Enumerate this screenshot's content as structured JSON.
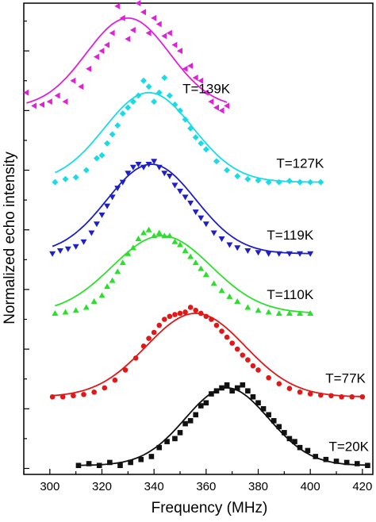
{
  "chart_data": {
    "type": "scatter",
    "title": "",
    "xlabel": "Frequency (MHz)",
    "ylabel": "Normalized echo intensity",
    "xlim": [
      290,
      424
    ],
    "xticks": [
      300,
      320,
      340,
      360,
      380,
      400,
      420
    ],
    "grid": false,
    "legend": "none",
    "series": [
      {
        "name": "T=139K",
        "color": "#e020d8",
        "marker": "triangle-left",
        "offset": 6.0,
        "fit": {
          "center": 330,
          "sigma": 16,
          "amplitude": 1.5,
          "baseline": 0.05
        },
        "x": [
          291,
          294,
          297,
          300,
          303,
          306,
          309,
          312,
          315,
          318,
          320,
          322,
          324,
          326,
          328,
          330,
          332,
          334,
          336,
          338,
          340,
          342,
          344,
          346,
          348,
          350,
          352,
          354,
          356,
          358,
          360,
          362,
          364,
          366,
          368
        ],
        "y": [
          0.3,
          0.08,
          0.1,
          0.15,
          0.25,
          0.15,
          0.5,
          0.4,
          0.7,
          0.9,
          1.0,
          1.1,
          1.3,
          1.75,
          1.55,
          1.2,
          1.35,
          1.8,
          1.65,
          1.3,
          1.55,
          1.45,
          1.25,
          1.3,
          1.1,
          1.0,
          0.7,
          0.75,
          0.55,
          0.5,
          0.3,
          0.15,
          0.05,
          0.0,
          0.08
        ]
      },
      {
        "name": "T=127K",
        "color": "#19dbe6",
        "marker": "diamond",
        "offset": 4.8,
        "fit": {
          "center": 338,
          "sigma": 17,
          "amplitude": 1.5,
          "baseline": 0.0
        },
        "x": [
          302,
          306,
          310,
          314,
          318,
          320,
          322,
          324,
          326,
          328,
          330,
          332,
          334,
          336,
          338,
          340,
          342,
          344,
          346,
          348,
          350,
          352,
          354,
          356,
          358,
          360,
          364,
          368,
          372,
          376,
          380,
          384,
          388,
          392,
          396,
          400,
          404
        ],
        "y": [
          0.0,
          0.05,
          0.08,
          0.2,
          0.4,
          0.45,
          0.65,
          0.8,
          0.95,
          1.15,
          1.25,
          1.35,
          1.45,
          1.7,
          1.6,
          1.35,
          1.5,
          1.75,
          1.45,
          1.3,
          1.2,
          1.05,
          0.9,
          0.75,
          0.65,
          0.55,
          0.35,
          0.2,
          0.1,
          0.05,
          0.03,
          0.0,
          0.0,
          0.02,
          0.0,
          0.0,
          0.0
        ]
      },
      {
        "name": "T=119K",
        "color": "#1f1fc8",
        "marker": "triangle-down",
        "offset": 3.6,
        "fit": {
          "center": 339,
          "sigma": 17,
          "amplitude": 1.5,
          "baseline": 0.0
        },
        "x": [
          301,
          304,
          307,
          310,
          313,
          316,
          318,
          320,
          322,
          324,
          326,
          328,
          330,
          332,
          334,
          336,
          338,
          340,
          342,
          344,
          346,
          348,
          350,
          352,
          354,
          356,
          358,
          360,
          363,
          366,
          369,
          372,
          376,
          380,
          384,
          388,
          392,
          396,
          400
        ],
        "y": [
          0.0,
          0.05,
          0.08,
          0.12,
          0.2,
          0.35,
          0.5,
          0.65,
          0.8,
          0.95,
          1.1,
          1.2,
          1.35,
          1.45,
          1.5,
          1.45,
          1.5,
          1.55,
          1.45,
          1.35,
          1.3,
          1.15,
          1.05,
          0.95,
          0.85,
          0.7,
          0.6,
          0.5,
          0.35,
          0.25,
          0.15,
          0.1,
          0.05,
          0.02,
          0.0,
          0.0,
          0.0,
          0.0,
          0.0
        ]
      },
      {
        "name": "T=110K",
        "color": "#2ae02a",
        "marker": "triangle-up",
        "offset": 2.6,
        "fit": {
          "center": 343,
          "sigma": 19,
          "amplitude": 1.3,
          "baseline": 0.0
        },
        "x": [
          302,
          306,
          310,
          314,
          317,
          320,
          322,
          324,
          326,
          328,
          330,
          332,
          334,
          336,
          338,
          340,
          342,
          344,
          346,
          348,
          350,
          352,
          354,
          356,
          358,
          360,
          363,
          366,
          369,
          372,
          376,
          380,
          384,
          388,
          392,
          396,
          400
        ],
        "y": [
          0.0,
          0.02,
          0.05,
          0.1,
          0.2,
          0.3,
          0.45,
          0.55,
          0.7,
          0.85,
          1.0,
          1.1,
          1.25,
          1.35,
          1.4,
          1.3,
          1.35,
          1.3,
          1.3,
          1.2,
          1.15,
          1.05,
          0.95,
          0.85,
          0.75,
          0.65,
          0.5,
          0.38,
          0.28,
          0.2,
          0.1,
          0.05,
          0.02,
          0.0,
          0.0,
          0.0,
          0.0
        ]
      },
      {
        "name": "T=77K",
        "color": "#e01818",
        "marker": "circle",
        "offset": 1.2,
        "fit": {
          "center": 356,
          "sigma": 19,
          "amplitude": 1.4,
          "baseline": 0.0
        },
        "x": [
          301,
          305,
          309,
          313,
          317,
          321,
          325,
          329,
          333,
          336,
          338,
          340,
          342,
          344,
          346,
          348,
          350,
          352,
          354,
          356,
          358,
          360,
          362,
          364,
          366,
          368,
          370,
          372,
          374,
          376,
          378,
          380,
          384,
          388,
          392,
          396,
          400,
          404,
          408,
          412,
          416,
          420
        ],
        "y": [
          0.0,
          0.0,
          0.02,
          0.04,
          0.08,
          0.15,
          0.28,
          0.45,
          0.65,
          0.85,
          0.98,
          1.08,
          1.2,
          1.3,
          1.35,
          1.38,
          1.4,
          1.42,
          1.5,
          1.45,
          1.4,
          1.35,
          1.3,
          1.2,
          1.1,
          1.0,
          0.9,
          0.8,
          0.7,
          0.62,
          0.52,
          0.45,
          0.32,
          0.22,
          0.14,
          0.08,
          0.05,
          0.03,
          0.02,
          0.0,
          0.0,
          0.0
        ]
      },
      {
        "name": "T=20K",
        "color": "#111111",
        "marker": "square",
        "offset": 0.0,
        "fit": {
          "center": 368,
          "sigma": 16,
          "amplitude": 1.3,
          "baseline": 0.05
        },
        "x": [
          311,
          315,
          319,
          323,
          327,
          331,
          335,
          339,
          342,
          345,
          348,
          350,
          352,
          354,
          356,
          358,
          360,
          362,
          364,
          366,
          368,
          370,
          372,
          374,
          376,
          378,
          380,
          382,
          384,
          386,
          388,
          390,
          392,
          394,
          396,
          399,
          402,
          406,
          410,
          414,
          418,
          422
        ],
        "y": [
          0.05,
          0.08,
          0.05,
          0.1,
          0.05,
          0.1,
          0.15,
          0.2,
          0.35,
          0.45,
          0.5,
          0.6,
          0.75,
          0.8,
          0.9,
          1.05,
          1.1,
          1.25,
          1.3,
          1.35,
          1.4,
          1.3,
          1.35,
          1.4,
          1.3,
          1.2,
          1.1,
          1.0,
          0.9,
          0.8,
          0.7,
          0.6,
          0.5,
          0.45,
          0.35,
          0.3,
          0.2,
          0.15,
          0.12,
          0.1,
          0.08,
          0.05
        ]
      }
    ]
  }
}
